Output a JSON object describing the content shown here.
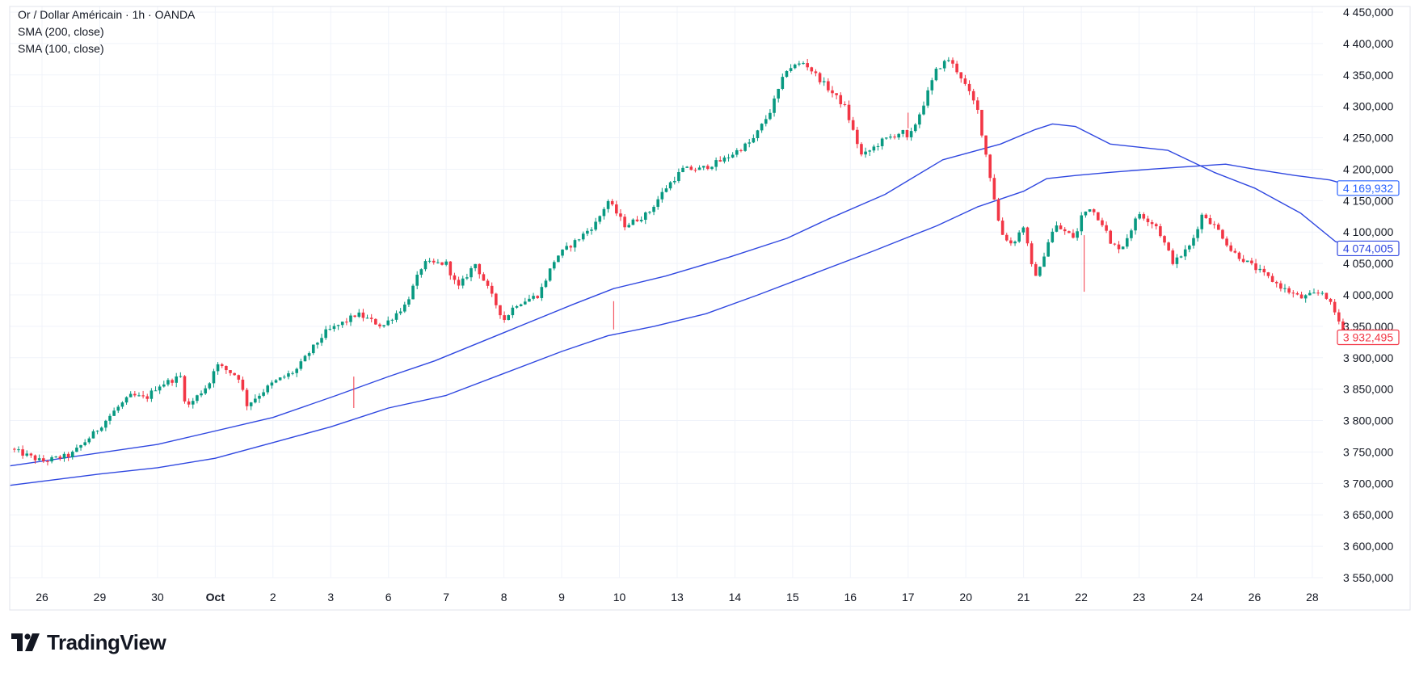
{
  "legend": {
    "symbol": "Or / Dollar Américain · 1h · OANDA",
    "sma200": "SMA (200, close)",
    "sma100": "SMA (100, close)"
  },
  "branding": {
    "name": "TradingView"
  },
  "colors": {
    "up": "#089981",
    "down": "#f23645",
    "sma": "#2f47e0",
    "sma200_badge": "#2962ff",
    "grid": "#f0f3fa",
    "border": "#e0e3eb"
  },
  "chart_data": {
    "type": "candlestick",
    "title": "Or / Dollar Américain · 1h · OANDA",
    "ylim": [
      3520,
      4470
    ],
    "y_ticks": [
      "4 450,000",
      "4 400,000",
      "4 350,000",
      "4 300,000",
      "4 250,000",
      "4 200,000",
      "4 150,000",
      "4 100,000",
      "4 050,000",
      "4 000,000",
      "3 950,000",
      "3 900,000",
      "3 850,000",
      "3 800,000",
      "3 750,000",
      "3 700,000",
      "3 650,000",
      "3 600,000",
      "3 550,000"
    ],
    "y_tick_values": [
      4450,
      4400,
      4350,
      4300,
      4250,
      4200,
      4150,
      4100,
      4050,
      4000,
      3950,
      3900,
      3850,
      3800,
      3750,
      3700,
      3650,
      3600,
      3550
    ],
    "x_ticks": [
      "26",
      "29",
      "30",
      "Oct",
      "2",
      "3",
      "6",
      "7",
      "8",
      "9",
      "10",
      "13",
      "14",
      "15",
      "16",
      "17",
      "20",
      "21",
      "22",
      "23",
      "24",
      "26",
      "28"
    ],
    "x_tick_index": [
      0,
      1,
      2,
      3,
      4,
      5,
      6,
      7,
      8,
      9,
      10,
      11,
      12,
      13,
      14,
      15,
      16,
      17,
      18,
      19,
      20,
      21,
      22
    ],
    "x_tick_bold": [
      "Oct"
    ],
    "price_path": {
      "description_points_index": [
        -0.55,
        0,
        0.5,
        0.9,
        1.3,
        1.55,
        1.8,
        2.0,
        2.4,
        2.5,
        2.9,
        3.0,
        3.4,
        3.55,
        4.0,
        4.4,
        4.6,
        4.9,
        5.3,
        5.45,
        5.9,
        6.3,
        6.6,
        7.0,
        7.2,
        7.5,
        8.0,
        8.2,
        8.6,
        8.9,
        9.3,
        9.6,
        9.8,
        10.1,
        10.5,
        10.8,
        11.1,
        11.4,
        11.8,
        12.3,
        12.6,
        12.9,
        13.2,
        13.6,
        13.9,
        14.2,
        14.55,
        14.9,
        15.0,
        15.25,
        15.5,
        15.7,
        15.9,
        16.2,
        16.5,
        16.6,
        16.8,
        17.0,
        17.15,
        17.25,
        17.4,
        17.55,
        17.9,
        18.0,
        18.15,
        18.4,
        18.5,
        18.7,
        19.0,
        19.3,
        19.6,
        19.9,
        20.1,
        20.4,
        20.6,
        20.9,
        21.2,
        21.5,
        21.8,
        22.2,
        22.4,
        22.5,
        22.65,
        22.75,
        22.82
      ],
      "values": [
        3755,
        3735,
        3745,
        3780,
        3820,
        3840,
        3835,
        3855,
        3870,
        3820,
        3860,
        3890,
        3870,
        3825,
        3860,
        3880,
        3905,
        3940,
        3960,
        3970,
        3950,
        3985,
        4050,
        4050,
        4010,
        4050,
        3960,
        3985,
        4000,
        4060,
        4090,
        4115,
        4150,
        4110,
        4130,
        4170,
        4200,
        4200,
        4215,
        4245,
        4290,
        4360,
        4370,
        4330,
        4300,
        4220,
        4245,
        4260,
        4245,
        4300,
        4360,
        4375,
        4350,
        4295,
        4150,
        4100,
        4080,
        4110,
        4040,
        4030,
        4080,
        4110,
        4090,
        4125,
        4140,
        4110,
        4080,
        4075,
        4130,
        4110,
        4050,
        4080,
        4130,
        4100,
        4070,
        4050,
        4030,
        4010,
        3995,
        4005,
        3970,
        3950,
        3940,
        3935,
        3932
      ]
    },
    "series": [
      {
        "name": "SMA (100, close)",
        "x": [
          -0.55,
          2,
          4,
          5.1,
          6,
          6.8,
          8,
          9.2,
          9.9,
          10.8,
          11.9,
          12.9,
          13.6,
          14.6,
          15.6,
          16.6,
          17.2,
          17.5,
          17.9,
          18.5,
          19.5,
          20.3,
          21,
          21.8,
          22.4,
          22.82
        ],
        "values": [
          3728,
          3762,
          3805,
          3840,
          3870,
          3895,
          3940,
          3985,
          4010,
          4030,
          4060,
          4090,
          4120,
          4160,
          4215,
          4240,
          4263,
          4272,
          4268,
          4240,
          4230,
          4195,
          4170,
          4130,
          4085,
          4074
        ]
      },
      {
        "name": "SMA (200, close)",
        "x": [
          -0.55,
          1,
          2,
          3,
          4,
          5,
          6,
          7,
          8,
          9,
          9.8,
          10.6,
          11.5,
          12.4,
          13.4,
          14.4,
          15.5,
          16.2,
          17,
          17.4,
          17.9,
          18.5,
          19.2,
          20,
          20.5,
          21,
          21.7,
          22.3,
          22.82
        ],
        "values": [
          3697,
          3715,
          3725,
          3740,
          3765,
          3790,
          3820,
          3840,
          3875,
          3910,
          3935,
          3950,
          3970,
          4000,
          4035,
          4070,
          4110,
          4140,
          4165,
          4185,
          4190,
          4195,
          4200,
          4205,
          4208,
          4200,
          4190,
          4183,
          4170
        ]
      }
    ],
    "last_values": [
      {
        "label": "4 169,932",
        "value": 4169.932,
        "series": "SMA (200, close)"
      },
      {
        "label": "4 074,005",
        "value": 4074.005,
        "series": "SMA (100, close)"
      },
      {
        "label": "3 932,495",
        "value": 3932.495,
        "series": "price"
      }
    ]
  }
}
